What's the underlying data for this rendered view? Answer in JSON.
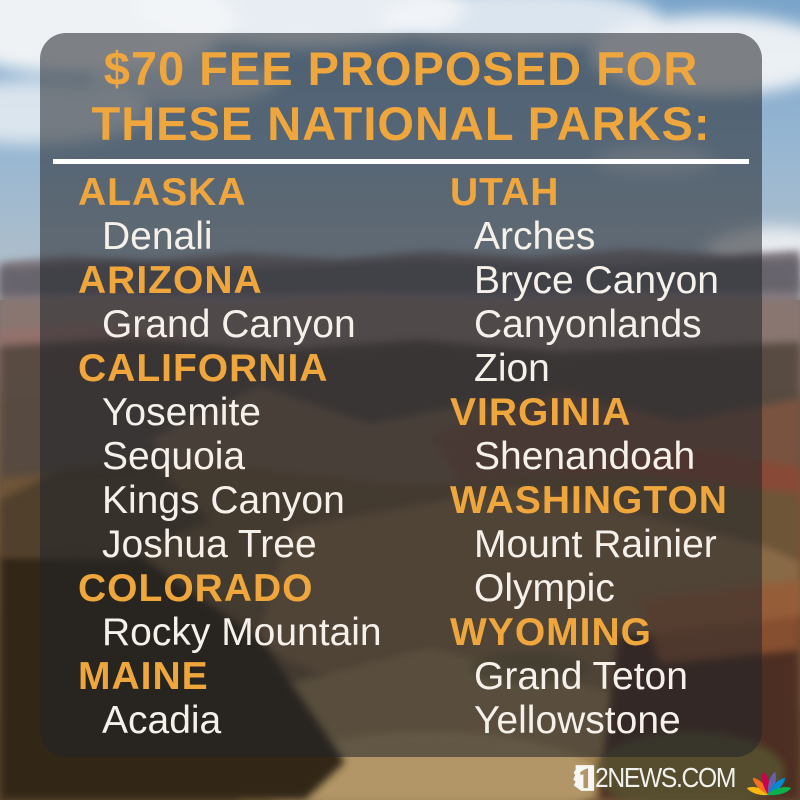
{
  "header": {
    "title_line1": "$70 FEE PROPOSED FOR",
    "title_line2": "THESE NATIONAL PARKS:"
  },
  "park_list": {
    "left_column": [
      {
        "state": "ALASKA",
        "parks": [
          "Denali"
        ]
      },
      {
        "state": "ARIZONA",
        "parks": [
          "Grand Canyon"
        ]
      },
      {
        "state": "CALIFORNIA",
        "parks": [
          "Yosemite",
          "Sequoia",
          "Kings Canyon",
          "Joshua Tree"
        ]
      },
      {
        "state": "COLORADO",
        "parks": [
          "Rocky Mountain"
        ]
      },
      {
        "state": "MAINE",
        "parks": [
          "Acadia"
        ]
      }
    ],
    "right_column": [
      {
        "state": "UTAH",
        "parks": [
          "Arches",
          "Bryce Canyon",
          "Canyonlands",
          "Zion"
        ]
      },
      {
        "state": "VIRGINIA",
        "parks": [
          "Shenandoah"
        ]
      },
      {
        "state": "WASHINGTON",
        "parks": [
          "Mount Rainier",
          "Olympic"
        ]
      },
      {
        "state": "WYOMING",
        "parks": [
          "Grand Teton",
          "Yellowstone"
        ]
      }
    ]
  },
  "branding": {
    "station_full_name": "12NEWS.COM",
    "logo_suffix": "2NEWS.COM",
    "network_icon": "nbc-peacock-icon",
    "state_icon": "arizona-shape-1-icon"
  },
  "colors": {
    "accent_orange": "#EFA63C",
    "park_text_white": "#F5F1EA",
    "divider_white": "#FFFFFF",
    "panel_overlay": "rgba(33,37,42,0.55)",
    "nbc_peacock": [
      "#FCB711",
      "#F37021",
      "#CC004C",
      "#6460AA",
      "#0089D0",
      "#0DB14B"
    ]
  }
}
